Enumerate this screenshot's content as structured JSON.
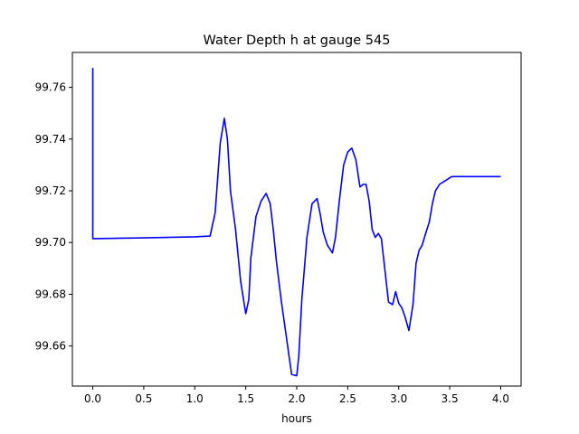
{
  "chart_data": {
    "type": "line",
    "title": "Water Depth h at gauge 545",
    "xlabel": "hours",
    "ylabel": "",
    "xlim": [
      -0.2,
      4.2
    ],
    "ylim": [
      99.6445,
      99.7735
    ],
    "x_ticks": [
      0.0,
      0.5,
      1.0,
      1.5,
      2.0,
      2.5,
      3.0,
      3.5,
      4.0
    ],
    "x_tick_labels": [
      "0.0",
      "0.5",
      "1.0",
      "1.5",
      "2.0",
      "2.5",
      "3.0",
      "3.5",
      "4.0"
    ],
    "y_ticks": [
      99.66,
      99.68,
      99.7,
      99.72,
      99.74,
      99.76
    ],
    "y_tick_labels": [
      "99.66",
      "99.68",
      "99.70",
      "99.72",
      "99.74",
      "99.76"
    ],
    "grid": false,
    "series": [
      {
        "color": "#0000ff",
        "x": [
          0.0,
          0.0,
          0.0,
          0.5,
          1.0,
          1.15,
          1.2,
          1.25,
          1.29,
          1.32,
          1.35,
          1.4,
          1.45,
          1.5,
          1.53,
          1.55,
          1.6,
          1.65,
          1.7,
          1.74,
          1.77,
          1.8,
          1.85,
          1.9,
          1.95,
          2.0,
          2.02,
          2.05,
          2.1,
          2.15,
          2.2,
          2.23,
          2.26,
          2.3,
          2.35,
          2.38,
          2.42,
          2.46,
          2.5,
          2.54,
          2.58,
          2.62,
          2.65,
          2.68,
          2.71,
          2.74,
          2.77,
          2.8,
          2.83,
          2.86,
          2.9,
          2.94,
          2.97,
          3.0,
          3.03,
          3.06,
          3.1,
          3.14,
          3.17,
          3.2,
          3.23,
          3.26,
          3.3,
          3.33,
          3.36,
          3.4,
          3.44,
          3.48,
          3.52,
          3.56,
          3.6,
          3.65,
          3.7,
          3.75,
          3.8,
          3.85,
          3.9,
          3.95,
          4.0
        ],
        "y": [
          99.7675,
          99.7025,
          99.7015,
          99.7018,
          99.7022,
          99.7025,
          99.7115,
          99.7385,
          99.748,
          99.74,
          99.72,
          99.705,
          99.685,
          99.6725,
          99.678,
          99.694,
          99.71,
          99.716,
          99.719,
          99.715,
          99.705,
          99.693,
          99.677,
          99.663,
          99.649,
          99.6485,
          99.656,
          99.678,
          99.702,
          99.715,
          99.717,
          99.711,
          99.704,
          99.699,
          99.696,
          99.702,
          99.717,
          99.73,
          99.735,
          99.7365,
          99.732,
          99.7215,
          99.7225,
          99.7225,
          99.716,
          99.705,
          99.702,
          99.7035,
          99.7015,
          99.691,
          99.677,
          99.676,
          99.681,
          99.6765,
          99.6748,
          99.6715,
          99.666,
          99.676,
          99.692,
          99.697,
          99.699,
          99.703,
          99.708,
          99.715,
          99.72,
          99.7225,
          99.7235,
          99.7245,
          99.7255,
          99.7255,
          99.7255,
          99.7255,
          99.7255,
          99.7255,
          99.7255,
          99.7255,
          99.7255,
          99.7255,
          99.7255
        ]
      }
    ]
  }
}
